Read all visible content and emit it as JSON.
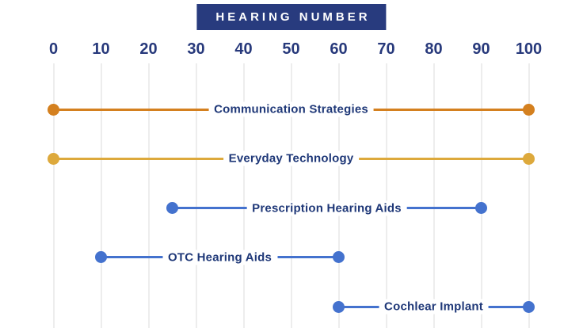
{
  "title": "HEARING NUMBER",
  "colors": {
    "navy_badge": "#283B7E",
    "tick_text": "#27397B",
    "label_text": "#1F3878",
    "gridline": "#EDEDED",
    "background": "#FFFFFF",
    "orange": "#D4801F",
    "gold": "#DDA93C",
    "blue": "#4472CE"
  },
  "chart_data": {
    "type": "dumbbell-range",
    "title": "HEARING NUMBER",
    "xlabel": "",
    "ylabel": "",
    "xlim": [
      0,
      100
    ],
    "x_ticks": [
      0,
      10,
      20,
      30,
      40,
      50,
      60,
      70,
      80,
      90,
      100
    ],
    "grid": true,
    "legend": false,
    "series": [
      {
        "name": "Communication Strategies",
        "start": 0,
        "end": 100,
        "color": "#D4801F"
      },
      {
        "name": "Everyday Technology",
        "start": 0,
        "end": 100,
        "color": "#DDA93C"
      },
      {
        "name": "Prescription Hearing Aids",
        "start": 25,
        "end": 90,
        "color": "#4472CE"
      },
      {
        "name": "OTC Hearing Aids",
        "start": 10,
        "end": 60,
        "color": "#4472CE"
      },
      {
        "name": "Cochlear Implant",
        "start": 60,
        "end": 100,
        "color": "#4472CE"
      }
    ]
  }
}
